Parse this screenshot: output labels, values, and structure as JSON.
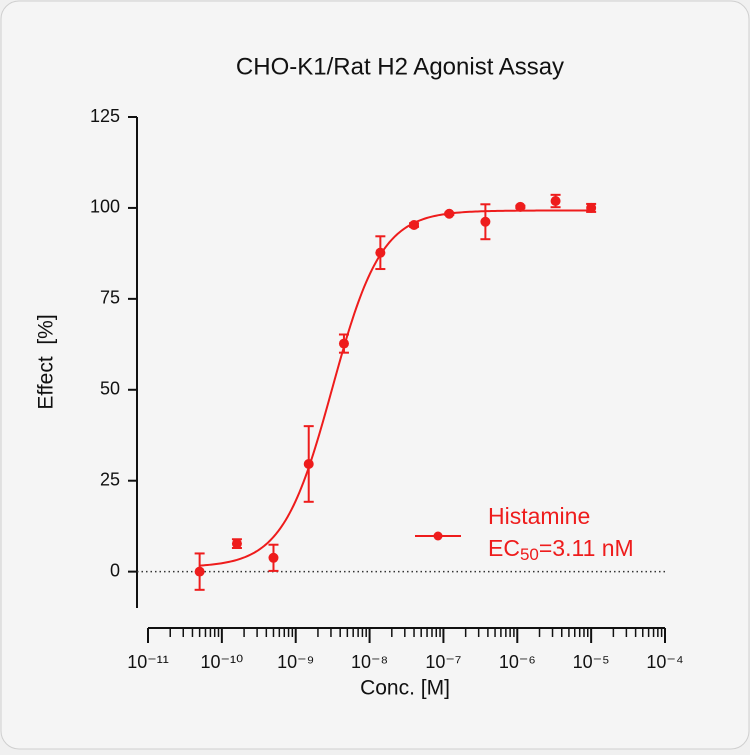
{
  "chart_data": {
    "type": "scatter",
    "title": "CHO-K1/Rat H2 Agonist Assay",
    "x_label": "Conc. [M]",
    "y_label": "Effect  [%]",
    "x_scale": "log",
    "xlim": [
      1e-11,
      0.0001
    ],
    "xticks": [
      {
        "value": 1e-11,
        "label": "10⁻¹¹"
      },
      {
        "value": 1e-10,
        "label": "10⁻¹⁰"
      },
      {
        "value": 1e-09,
        "label": "10⁻⁹"
      },
      {
        "value": 1e-08,
        "label": "10⁻⁸"
      },
      {
        "value": 1e-07,
        "label": "10⁻⁷"
      },
      {
        "value": 1e-06,
        "label": "10⁻⁶"
      },
      {
        "value": 1e-05,
        "label": "10⁻⁵"
      },
      {
        "value": 0.0001,
        "label": "10⁻⁴"
      }
    ],
    "ylim": [
      -10,
      125
    ],
    "yticks": [
      0,
      25,
      50,
      75,
      100,
      125
    ],
    "series": [
      {
        "name": "Histamine",
        "color": "#ee1c1c",
        "x": [
          5e-11,
          1.6e-10,
          5e-10,
          1.5e-09,
          4.5e-09,
          1.4e-08,
          4e-08,
          1.2e-07,
          3.7e-07,
          1.1e-06,
          3.3e-06,
          1e-05
        ],
        "values": [
          0,
          7.7,
          3.8,
          29.6,
          62.7,
          87.7,
          95.3,
          98.4,
          96.2,
          100.3,
          101.9,
          100
        ],
        "errors": [
          5,
          1.2,
          3.6,
          10.4,
          2.5,
          4.5,
          0.5,
          0.3,
          4.8,
          0.3,
          1.7,
          1.1
        ]
      }
    ],
    "fit": {
      "bottom": 1.2,
      "top": 99.3,
      "ec50": 3.11e-09,
      "hill": 1.3
    },
    "annotation": {
      "prefix": "EC",
      "subscript": "50",
      "suffix": "=3.11 nM"
    }
  }
}
